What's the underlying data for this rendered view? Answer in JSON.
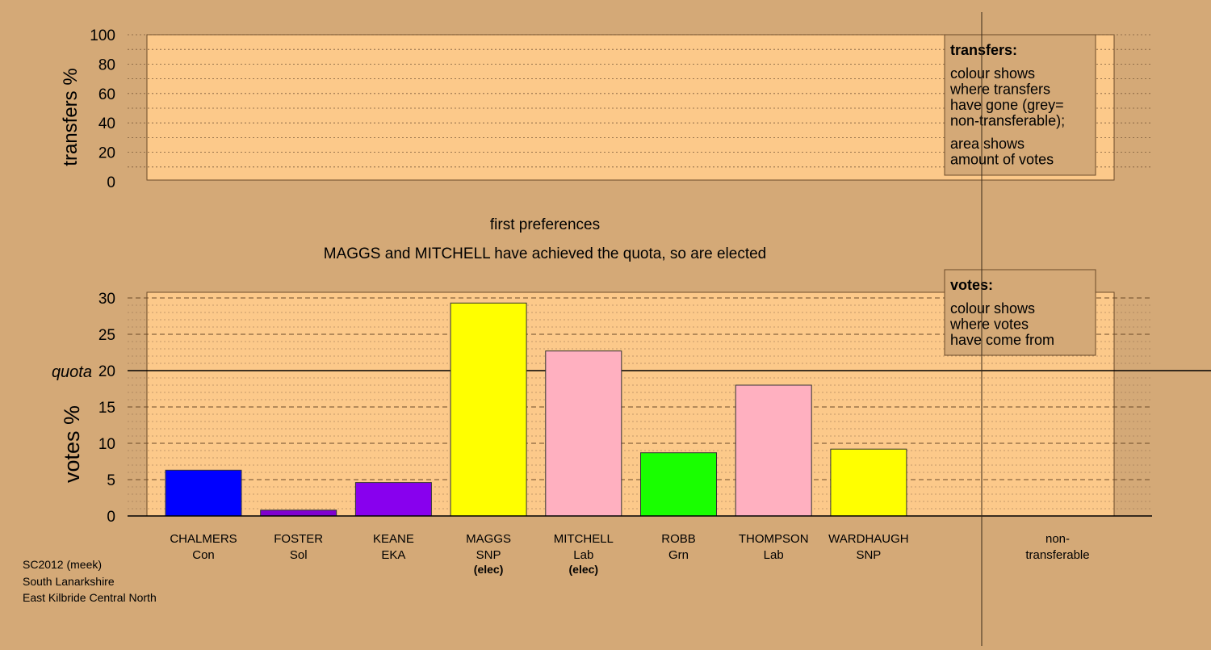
{
  "colors": {
    "background": "#d4a977",
    "panel": "#fcc98a",
    "Con": "#0000ff",
    "Sol": "#8000d0",
    "EKA": "#8800ee",
    "SNP": "#ffff00",
    "Lab": "#ffb0c0",
    "Grn": "#19ff00"
  },
  "transfers_chart": {
    "ylabel": "transfers %",
    "yticks": [
      "0",
      "20",
      "40",
      "60",
      "80",
      "100"
    ],
    "legend": {
      "title": "transfers:",
      "lines": [
        "colour shows",
        "where transfers",
        "have gone (grey=",
        "non-transferable);"
      ],
      "lines2": [
        "area shows",
        "amount of votes"
      ]
    }
  },
  "stage_title": "first preferences",
  "stage_subtitle": "MAGGS and MITCHELL have achieved the quota, so are elected",
  "chart_data": {
    "type": "bar",
    "categories": [
      "CHALMERS",
      "FOSTER",
      "KEANE",
      "MAGGS",
      "MITCHELL",
      "ROBB",
      "THOMPSON",
      "WARDHAUGH"
    ],
    "parties": [
      "Con",
      "Sol",
      "EKA",
      "SNP",
      "Lab",
      "Grn",
      "Lab",
      "SNP"
    ],
    "elected": [
      "",
      "",
      "",
      "(elec)",
      "(elec)",
      "",
      "",
      ""
    ],
    "values": [
      6.3,
      0.8,
      4.6,
      29.3,
      22.7,
      8.7,
      18.0,
      9.2
    ],
    "ylabel": "votes %",
    "ylim": [
      0,
      30
    ],
    "yticks": [
      "0",
      "5",
      "10",
      "15",
      "20",
      "25",
      "30"
    ],
    "quota": 20,
    "quota_label": "quota",
    "nontransferable_label": [
      "non-",
      "transferable"
    ],
    "legend": {
      "title": "votes:",
      "lines": [
        "colour shows",
        "where votes",
        "have come from"
      ]
    }
  },
  "footer": {
    "line1": "SC2012 (meek)",
    "line2": "South Lanarkshire",
    "line3": "East Kilbride Central North"
  }
}
